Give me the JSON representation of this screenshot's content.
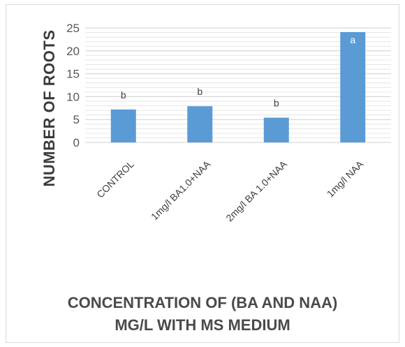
{
  "chart_data": {
    "type": "bar",
    "categories": [
      "CONTROL",
      "1mg/l BA1.0+NAA",
      "2mg/l BA 1.0+NAA",
      "1mg/l NAA"
    ],
    "values": [
      7.2,
      7.9,
      5.4,
      24.1
    ],
    "data_labels": [
      "b",
      "b",
      "b",
      "a"
    ],
    "ylabel": "NUMBER OF ROOTS",
    "xlabel_lines": [
      "CONCENTRATION OF (BA AND NAA)",
      "MG/L  WITH MS MEDIUM"
    ],
    "yticks": [
      0,
      5,
      10,
      15,
      20,
      25
    ],
    "ylim": [
      0,
      25
    ],
    "grid": true,
    "bar_color": "#5b9bd5",
    "legend": "none"
  }
}
